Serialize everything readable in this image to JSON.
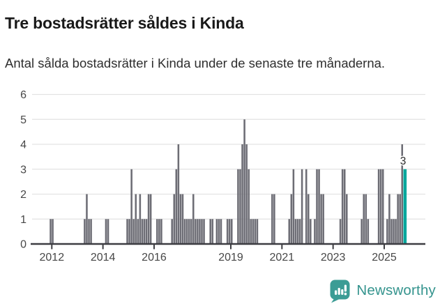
{
  "header": {},
  "chart_data": {
    "type": "bar",
    "title": "Tre bostadsrätter såldes i Kinda",
    "subtitle": "Antal sålda bostadsrätter i Kinda under de senaste tre månaderna.",
    "xlabel": "",
    "ylabel": "",
    "ylim": [
      0,
      6
    ],
    "yticks": [
      0,
      1,
      2,
      3,
      4,
      5,
      6
    ],
    "xticks": [
      "2012",
      "2014",
      "2016",
      "2019",
      "2021",
      "2023",
      "2025"
    ],
    "grid": "horizontal",
    "time_unit": "month",
    "highlight_label": "3",
    "colors": {
      "bar": "#6d6d75",
      "highlight": "#00a79c",
      "grid": "#e3e3e3",
      "axis": "#3d3d42",
      "tick_text": "#474747",
      "annotation": "#2b2b2b"
    },
    "series": [
      {
        "date": "2011-12",
        "value": 1
      },
      {
        "date": "2012-01",
        "value": 1
      },
      {
        "date": "2013-04",
        "value": 1
      },
      {
        "date": "2013-05",
        "value": 2
      },
      {
        "date": "2013-06",
        "value": 1
      },
      {
        "date": "2013-07",
        "value": 1
      },
      {
        "date": "2014-02",
        "value": 1
      },
      {
        "date": "2014-03",
        "value": 1
      },
      {
        "date": "2014-12",
        "value": 1
      },
      {
        "date": "2015-01",
        "value": 1
      },
      {
        "date": "2015-02",
        "value": 3
      },
      {
        "date": "2015-03",
        "value": 1
      },
      {
        "date": "2015-04",
        "value": 2
      },
      {
        "date": "2015-05",
        "value": 1
      },
      {
        "date": "2015-06",
        "value": 2
      },
      {
        "date": "2015-07",
        "value": 1
      },
      {
        "date": "2015-08",
        "value": 1
      },
      {
        "date": "2015-09",
        "value": 1
      },
      {
        "date": "2015-10",
        "value": 2
      },
      {
        "date": "2015-11",
        "value": 2
      },
      {
        "date": "2016-02",
        "value": 1
      },
      {
        "date": "2016-03",
        "value": 1
      },
      {
        "date": "2016-04",
        "value": 1
      },
      {
        "date": "2016-09",
        "value": 1
      },
      {
        "date": "2016-10",
        "value": 2
      },
      {
        "date": "2016-11",
        "value": 3
      },
      {
        "date": "2016-12",
        "value": 4
      },
      {
        "date": "2017-01",
        "value": 2
      },
      {
        "date": "2017-02",
        "value": 2
      },
      {
        "date": "2017-03",
        "value": 1
      },
      {
        "date": "2017-04",
        "value": 1
      },
      {
        "date": "2017-05",
        "value": 1
      },
      {
        "date": "2017-06",
        "value": 1
      },
      {
        "date": "2017-07",
        "value": 2
      },
      {
        "date": "2017-08",
        "value": 1
      },
      {
        "date": "2017-09",
        "value": 1
      },
      {
        "date": "2017-10",
        "value": 1
      },
      {
        "date": "2017-11",
        "value": 1
      },
      {
        "date": "2017-12",
        "value": 1
      },
      {
        "date": "2018-03",
        "value": 1
      },
      {
        "date": "2018-04",
        "value": 1
      },
      {
        "date": "2018-06",
        "value": 1
      },
      {
        "date": "2018-07",
        "value": 1
      },
      {
        "date": "2018-08",
        "value": 1
      },
      {
        "date": "2018-11",
        "value": 1
      },
      {
        "date": "2018-12",
        "value": 1
      },
      {
        "date": "2019-01",
        "value": 1
      },
      {
        "date": "2019-04",
        "value": 3
      },
      {
        "date": "2019-05",
        "value": 3
      },
      {
        "date": "2019-06",
        "value": 4
      },
      {
        "date": "2019-07",
        "value": 5
      },
      {
        "date": "2019-08",
        "value": 4
      },
      {
        "date": "2019-09",
        "value": 3
      },
      {
        "date": "2019-10",
        "value": 1
      },
      {
        "date": "2019-11",
        "value": 1
      },
      {
        "date": "2019-12",
        "value": 1
      },
      {
        "date": "2020-01",
        "value": 1
      },
      {
        "date": "2020-08",
        "value": 2
      },
      {
        "date": "2020-09",
        "value": 2
      },
      {
        "date": "2021-04",
        "value": 1
      },
      {
        "date": "2021-05",
        "value": 2
      },
      {
        "date": "2021-06",
        "value": 3
      },
      {
        "date": "2021-07",
        "value": 1
      },
      {
        "date": "2021-08",
        "value": 1
      },
      {
        "date": "2021-09",
        "value": 1
      },
      {
        "date": "2021-10",
        "value": 3
      },
      {
        "date": "2021-12",
        "value": 3
      },
      {
        "date": "2022-01",
        "value": 2
      },
      {
        "date": "2022-02",
        "value": 1
      },
      {
        "date": "2022-04",
        "value": 1
      },
      {
        "date": "2022-05",
        "value": 3
      },
      {
        "date": "2022-06",
        "value": 3
      },
      {
        "date": "2022-07",
        "value": 2
      },
      {
        "date": "2022-08",
        "value": 2
      },
      {
        "date": "2023-04",
        "value": 1
      },
      {
        "date": "2023-05",
        "value": 3
      },
      {
        "date": "2023-06",
        "value": 3
      },
      {
        "date": "2023-07",
        "value": 2
      },
      {
        "date": "2024-02",
        "value": 1
      },
      {
        "date": "2024-03",
        "value": 2
      },
      {
        "date": "2024-04",
        "value": 2
      },
      {
        "date": "2024-05",
        "value": 1
      },
      {
        "date": "2024-10",
        "value": 3
      },
      {
        "date": "2024-11",
        "value": 3
      },
      {
        "date": "2024-12",
        "value": 3
      },
      {
        "date": "2025-02",
        "value": 1
      },
      {
        "date": "2025-03",
        "value": 2
      },
      {
        "date": "2025-04",
        "value": 1
      },
      {
        "date": "2025-05",
        "value": 1
      },
      {
        "date": "2025-06",
        "value": 1
      },
      {
        "date": "2025-07",
        "value": 2
      },
      {
        "date": "2025-08",
        "value": 2
      },
      {
        "date": "2025-09",
        "value": 4
      },
      {
        "date": "2025-10",
        "value": 3,
        "highlight": true
      }
    ]
  },
  "footer": {
    "brand": "Newsworthy",
    "logo_icon": "newsworthy-chart-bubble-icon",
    "brand_color": "#35948e",
    "icon_color": "#3b9c95"
  }
}
